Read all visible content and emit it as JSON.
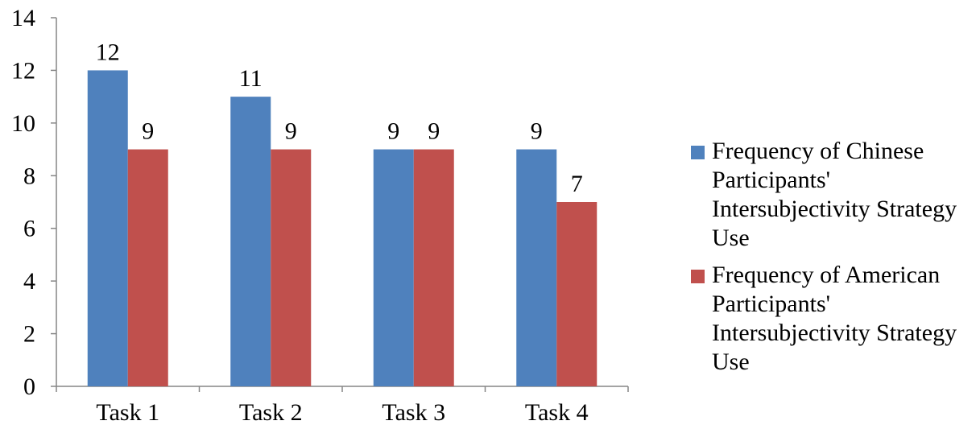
{
  "chart_data": {
    "type": "bar",
    "categories": [
      "Task 1",
      "Task 2",
      "Task 3",
      "Task 4"
    ],
    "series": [
      {
        "name": "Frequency of Chinese Participants' Intersubjectivity Strategy Use",
        "values": [
          12,
          11,
          9,
          9
        ],
        "color": "#4f81bd"
      },
      {
        "name": "Frequency of American Participants' Intersubjectivity Strategy Use",
        "values": [
          9,
          9,
          9,
          7
        ],
        "color": "#c0504d"
      }
    ],
    "yticks": [
      "0",
      "2",
      "4",
      "6",
      "8",
      "10",
      "12",
      "14"
    ],
    "ylim": [
      0,
      14
    ],
    "grid": false,
    "legend_position": "right",
    "data_labels": true
  }
}
